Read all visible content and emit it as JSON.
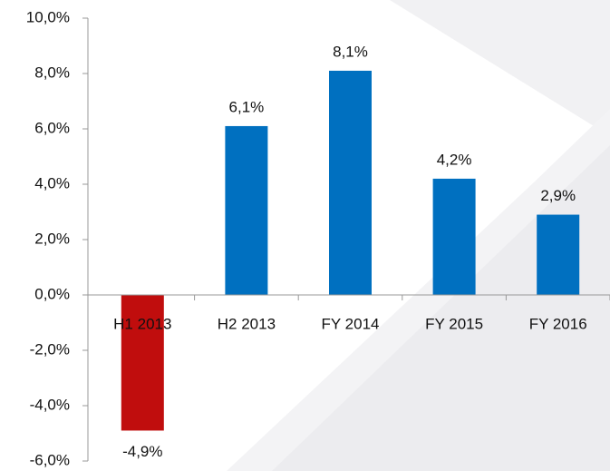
{
  "chart_data": {
    "type": "bar",
    "categories": [
      "H1 2013",
      "H2 2013",
      "FY 2014",
      "FY 2015",
      "FY 2016"
    ],
    "values": [
      -4.9,
      6.1,
      8.1,
      4.2,
      2.9
    ],
    "value_labels": [
      "-4,9%",
      "6,1%",
      "8,1%",
      "4,2%",
      "2,9%"
    ],
    "colors": [
      "#c00d0d",
      "#0070c0",
      "#0070c0",
      "#0070c0",
      "#0070c0"
    ],
    "ylim": [
      -6,
      10
    ],
    "yticks": [
      {
        "value": -6,
        "label": "-6,0%"
      },
      {
        "value": -4,
        "label": "-4,0%"
      },
      {
        "value": -2,
        "label": "-2,0%"
      },
      {
        "value": 0,
        "label": "0,0%"
      },
      {
        "value": 2,
        "label": "2,0%"
      },
      {
        "value": 4,
        "label": "4,0%"
      },
      {
        "value": 6,
        "label": "6,0%"
      },
      {
        "value": 8,
        "label": "8,0%"
      },
      {
        "value": 10,
        "label": "10,0%"
      }
    ]
  }
}
